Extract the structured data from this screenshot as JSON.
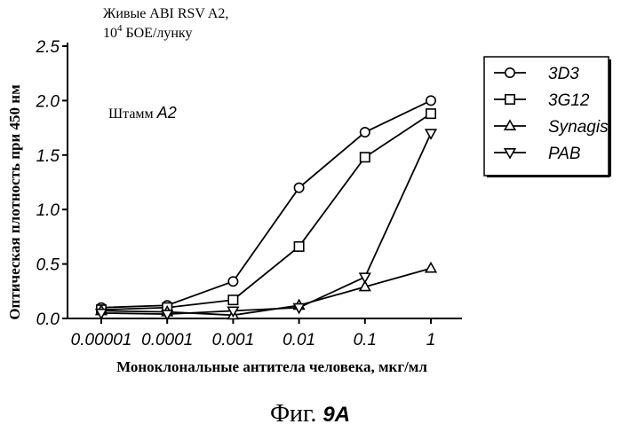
{
  "chart_data": {
    "type": "line",
    "title_line1": "Живые ABI RSV A2,",
    "title_line2_base": "10",
    "title_line2_sup": "4",
    "title_line2_rest": " БОЕ/лунку",
    "annotation_prefix": "Штамм ",
    "annotation_strain": "A2",
    "xlabel": "Моноклональные антитела человека, мкг/мл",
    "ylabel": "Оптическая плотность при 450 нм",
    "figure_caption_prefix": "Фиг. ",
    "figure_caption_number": "9A",
    "x_scale": "log",
    "x": [
      1e-05,
      0.0001,
      0.001,
      0.01,
      0.1,
      1
    ],
    "x_tick_labels": [
      "0.00001",
      "0.0001",
      "0.001",
      "0.01",
      "0.1",
      "1"
    ],
    "ylim": [
      0,
      2.5
    ],
    "y_ticks": [
      0.0,
      0.5,
      1.0,
      1.5,
      2.0,
      2.5
    ],
    "y_tick_labels": [
      "0.0",
      "0.5",
      "1.0",
      "1.5",
      "2.0",
      "2.5"
    ],
    "grid": false,
    "legend_position": "top-right",
    "series": [
      {
        "name": "3D3",
        "marker": "circle",
        "values": [
          0.1,
          0.12,
          0.34,
          1.2,
          1.71,
          2.0
        ]
      },
      {
        "name": "3G12",
        "marker": "square",
        "values": [
          0.08,
          0.1,
          0.17,
          0.66,
          1.48,
          1.88
        ]
      },
      {
        "name": "Synagis",
        "marker": "triangle-up",
        "values": [
          0.07,
          0.06,
          0.03,
          0.12,
          0.29,
          0.46
        ]
      },
      {
        "name": "PAB",
        "marker": "triangle-down",
        "values": [
          0.05,
          0.04,
          0.07,
          0.1,
          0.38,
          1.7
        ]
      }
    ]
  }
}
